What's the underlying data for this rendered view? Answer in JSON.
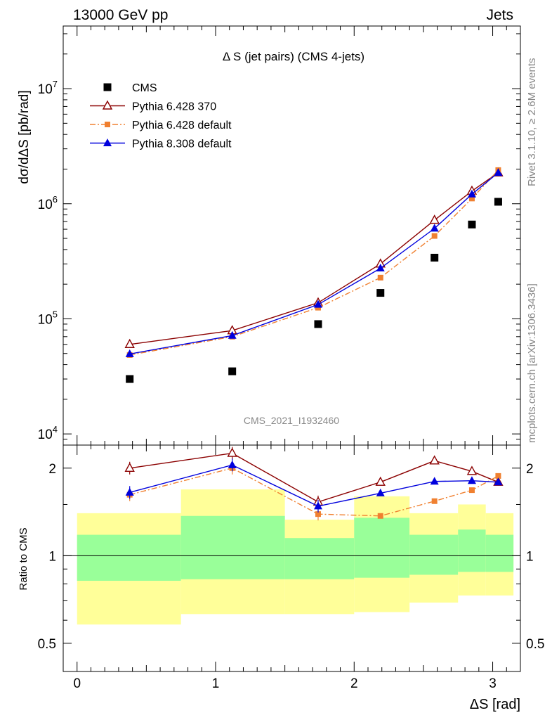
{
  "header": {
    "left": "13000 GeV pp",
    "right": "Jets"
  },
  "side_text": {
    "rivet": "Rivet 3.1.10, ≥ 2.6M events",
    "mcplots": "mcplots.cern.ch [arXiv:1306.3436]"
  },
  "colors": {
    "cms": "#000000",
    "py6_370": "#8b0000",
    "py6_default": "#f08030",
    "py8_default": "#0000dd",
    "band_inner": "#99ff99",
    "band_outer": "#ffff99"
  },
  "chart_data": [
    {
      "type": "scatter",
      "panel": "main",
      "title": "Δ S (jet pairs) (CMS 4-jets)",
      "watermark": "CMS_2021_I1932460",
      "ylabel": "dσ/dΔS [pb/rad]",
      "yscale": "log",
      "ylim": [
        8000,
        35000000
      ],
      "xlim": [
        -0.1,
        3.2
      ],
      "ytick_labels": [
        "10^4",
        "10^5",
        "10^6",
        "10^7"
      ],
      "legend_position": "top-left",
      "x": [
        0.38,
        1.12,
        1.74,
        2.19,
        2.58,
        2.85,
        3.04
      ],
      "series": [
        {
          "name": "CMS",
          "marker": "square",
          "values": [
            30000,
            35000,
            90000,
            168000,
            340000,
            660000,
            1040000
          ]
        },
        {
          "name": "Pythia 6.428 370",
          "marker": "open-triangle",
          "values": [
            60000,
            79000,
            138000,
            300000,
            720000,
            1290000,
            1860000
          ]
        },
        {
          "name": "Pythia 6.428 default",
          "marker": "small-square",
          "line": "dashdot",
          "values": [
            48500,
            70000,
            125000,
            228000,
            525000,
            1110000,
            1960000
          ]
        },
        {
          "name": "Pythia 8.308 default",
          "marker": "triangle",
          "values": [
            49500,
            71500,
            133000,
            275000,
            610000,
            1210000,
            1860000
          ]
        }
      ]
    },
    {
      "type": "line",
      "panel": "ratio",
      "ylabel": "Ratio to CMS",
      "xlabel": "ΔS [rad]",
      "yscale": "log",
      "ylim": [
        0.4,
        2.4
      ],
      "xlim": [
        -0.1,
        3.2
      ],
      "ytick_labels": [
        "0.5",
        "1",
        "2"
      ],
      "xtick_labels": [
        "0",
        "1",
        "2",
        "3"
      ],
      "x": [
        0.38,
        1.12,
        1.74,
        2.19,
        2.58,
        2.85,
        3.04
      ],
      "series": [
        {
          "name": "Pythia 6.428 370",
          "values": [
            2.0,
            2.25,
            1.53,
            1.79,
            2.12,
            1.95,
            1.79
          ]
        },
        {
          "name": "Pythia 6.428 default",
          "values": [
            1.62,
            2.0,
            1.39,
            1.37,
            1.54,
            1.68,
            1.88
          ]
        },
        {
          "name": "Pythia 8.308 default",
          "values": [
            1.65,
            2.05,
            1.48,
            1.64,
            1.8,
            1.81,
            1.79
          ]
        }
      ],
      "bands": [
        {
          "x0": 0.0,
          "x1": 0.75,
          "inner": [
            0.82,
            1.18
          ],
          "outer": [
            0.58,
            1.4
          ]
        },
        {
          "x0": 0.75,
          "x1": 1.5,
          "inner": [
            0.83,
            1.37
          ],
          "outer": [
            0.63,
            1.69
          ]
        },
        {
          "x0": 1.5,
          "x1": 2.0,
          "inner": [
            0.83,
            1.15
          ],
          "outer": [
            0.63,
            1.33
          ]
        },
        {
          "x0": 2.0,
          "x1": 2.4,
          "inner": [
            0.84,
            1.35
          ],
          "outer": [
            0.64,
            1.6
          ]
        },
        {
          "x0": 2.4,
          "x1": 2.75,
          "inner": [
            0.86,
            1.18
          ],
          "outer": [
            0.69,
            1.4
          ]
        },
        {
          "x0": 2.75,
          "x1": 2.95,
          "inner": [
            0.88,
            1.23
          ],
          "outer": [
            0.73,
            1.5
          ]
        },
        {
          "x0": 2.95,
          "x1": 3.15,
          "inner": [
            0.88,
            1.18
          ],
          "outer": [
            0.73,
            1.4
          ]
        }
      ]
    }
  ]
}
